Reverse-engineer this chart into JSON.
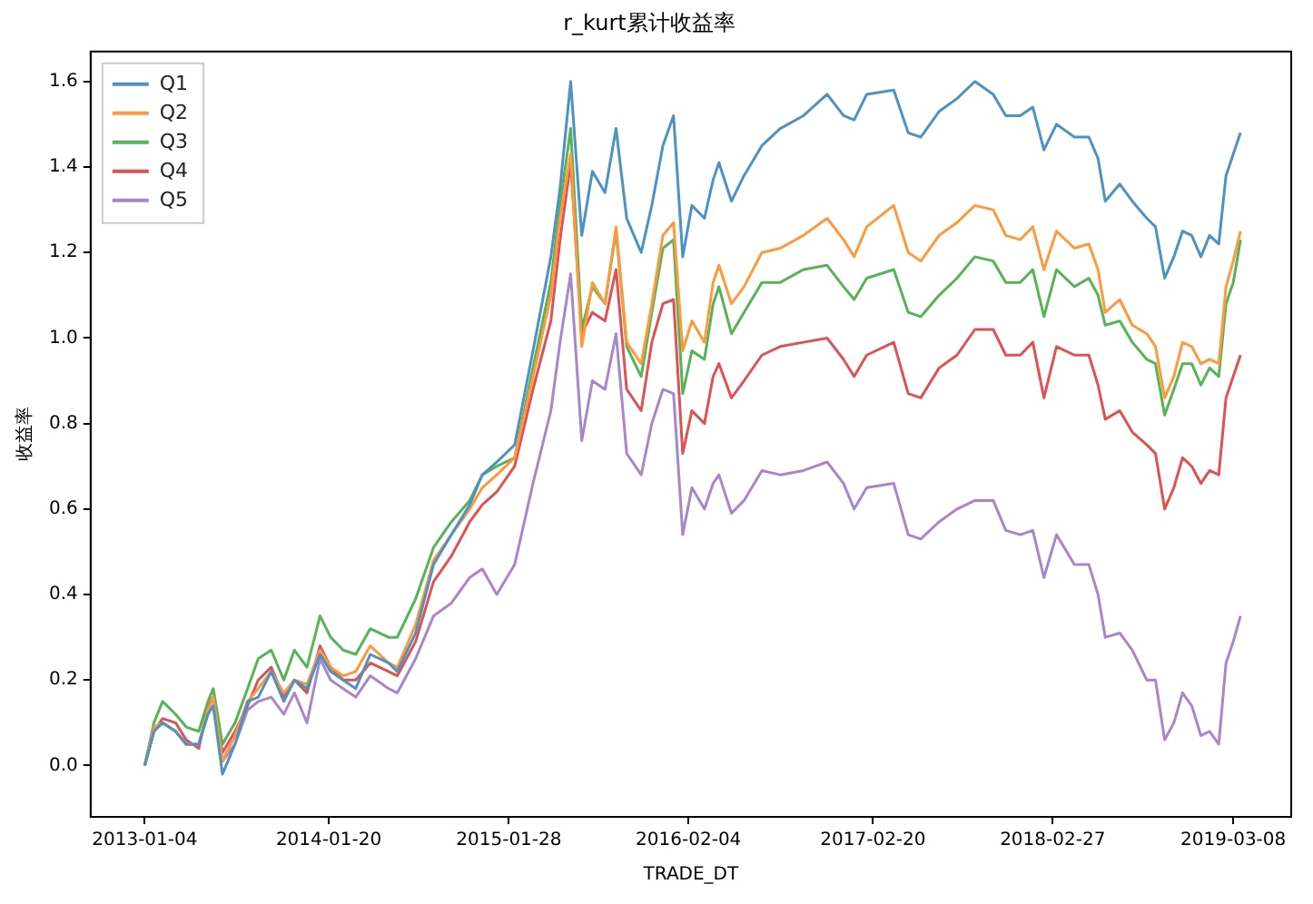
{
  "chart_data": {
    "type": "line",
    "title": "r_kurt累计收益率",
    "xlabel": "TRADE_DT",
    "ylabel": "收益率",
    "x": [
      "2013-01-04",
      "2013-01-23",
      "2013-02-10",
      "2013-03-09",
      "2013-03-31",
      "2013-04-26",
      "2013-05-15",
      "2013-05-26",
      "2013-06-14",
      "2013-07-10",
      "2013-08-05",
      "2013-08-27",
      "2013-09-23",
      "2013-10-19",
      "2013-11-10",
      "2013-12-06",
      "2014-01-02",
      "2014-01-24",
      "2014-02-19",
      "2014-03-17",
      "2014-04-16",
      "2014-05-24",
      "2014-06-11",
      "2014-07-19",
      "2014-08-25",
      "2014-10-01",
      "2014-11-08",
      "2014-12-04",
      "2015-01-03",
      "2015-02-09",
      "2015-03-19",
      "2015-04-25",
      "2015-05-14",
      "2015-06-05",
      "2015-06-28",
      "2015-07-20",
      "2015-08-15",
      "2015-09-07",
      "2015-09-29",
      "2015-10-29",
      "2015-11-20",
      "2015-12-13",
      "2016-01-04",
      "2016-01-23",
      "2016-02-11",
      "2016-03-08",
      "2016-03-26",
      "2016-04-07",
      "2016-05-03",
      "2016-05-29",
      "2016-07-05",
      "2016-08-12",
      "2016-09-29",
      "2016-11-17",
      "2016-12-21",
      "2017-01-12",
      "2017-02-07",
      "2017-04-04",
      "2017-05-04",
      "2017-05-30",
      "2017-07-07",
      "2017-08-13",
      "2017-09-19",
      "2017-10-27",
      "2017-11-22",
      "2017-12-22",
      "2018-01-17",
      "2018-02-09",
      "2018-03-07",
      "2018-04-13",
      "2018-05-13",
      "2018-06-01",
      "2018-06-16",
      "2018-07-16",
      "2018-08-11",
      "2018-09-10",
      "2018-09-28",
      "2018-10-17",
      "2018-11-05",
      "2018-11-23",
      "2018-12-12",
      "2018-12-31",
      "2019-01-18",
      "2019-02-06",
      "2019-02-21",
      "2019-03-08",
      "2019-03-23"
    ],
    "series": [
      {
        "name": "Q1",
        "color": "#4c92c3",
        "values": [
          0,
          0.08,
          0.1,
          0.08,
          0.05,
          0.05,
          0.12,
          0.14,
          -0.02,
          0.05,
          0.15,
          0.16,
          0.22,
          0.15,
          0.2,
          0.18,
          0.26,
          0.22,
          0.2,
          0.18,
          0.26,
          0.24,
          0.22,
          0.31,
          0.47,
          0.54,
          0.61,
          0.68,
          0.71,
          0.75,
          0.97,
          1.19,
          1.35,
          1.6,
          1.24,
          1.39,
          1.34,
          1.49,
          1.28,
          1.2,
          1.31,
          1.45,
          1.52,
          1.19,
          1.31,
          1.28,
          1.37,
          1.41,
          1.32,
          1.38,
          1.45,
          1.49,
          1.52,
          1.57,
          1.52,
          1.51,
          1.57,
          1.58,
          1.48,
          1.47,
          1.53,
          1.56,
          1.6,
          1.57,
          1.52,
          1.52,
          1.54,
          1.44,
          1.5,
          1.47,
          1.47,
          1.42,
          1.32,
          1.36,
          1.32,
          1.28,
          1.26,
          1.14,
          1.19,
          1.25,
          1.24,
          1.19,
          1.24,
          1.22,
          1.38,
          1.43,
          1.48
        ]
      },
      {
        "name": "Q2",
        "color": "#ff993e",
        "values": [
          0,
          0.09,
          0.1,
          0.08,
          0.05,
          0.05,
          0.13,
          0.16,
          0.01,
          0.07,
          0.15,
          0.18,
          0.22,
          0.17,
          0.2,
          0.19,
          0.27,
          0.23,
          0.21,
          0.22,
          0.28,
          0.24,
          0.23,
          0.33,
          0.48,
          0.54,
          0.6,
          0.65,
          0.68,
          0.72,
          0.91,
          1.1,
          1.28,
          1.43,
          0.98,
          1.13,
          1.08,
          1.26,
          0.99,
          0.94,
          1.08,
          1.24,
          1.27,
          0.97,
          1.04,
          0.99,
          1.13,
          1.17,
          1.08,
          1.12,
          1.2,
          1.21,
          1.24,
          1.28,
          1.23,
          1.19,
          1.26,
          1.31,
          1.2,
          1.18,
          1.24,
          1.27,
          1.31,
          1.3,
          1.24,
          1.23,
          1.26,
          1.16,
          1.25,
          1.21,
          1.22,
          1.16,
          1.06,
          1.09,
          1.03,
          1.01,
          0.98,
          0.86,
          0.91,
          0.99,
          0.98,
          0.94,
          0.95,
          0.94,
          1.12,
          1.18,
          1.25
        ]
      },
      {
        "name": "Q3",
        "color": "#56b356",
        "values": [
          0,
          0.1,
          0.15,
          0.12,
          0.09,
          0.08,
          0.15,
          0.18,
          0.05,
          0.1,
          0.18,
          0.25,
          0.27,
          0.2,
          0.27,
          0.23,
          0.35,
          0.3,
          0.27,
          0.26,
          0.32,
          0.3,
          0.3,
          0.39,
          0.51,
          0.57,
          0.62,
          0.68,
          0.7,
          0.72,
          0.93,
          1.13,
          1.31,
          1.49,
          1.02,
          1.12,
          1.08,
          1.25,
          0.98,
          0.91,
          1.06,
          1.21,
          1.23,
          0.87,
          0.97,
          0.95,
          1.08,
          1.12,
          1.01,
          1.06,
          1.13,
          1.13,
          1.16,
          1.17,
          1.12,
          1.09,
          1.14,
          1.16,
          1.06,
          1.05,
          1.1,
          1.14,
          1.19,
          1.18,
          1.13,
          1.13,
          1.16,
          1.05,
          1.16,
          1.12,
          1.14,
          1.1,
          1.03,
          1.04,
          0.99,
          0.95,
          0.94,
          0.82,
          0.88,
          0.94,
          0.94,
          0.89,
          0.93,
          0.91,
          1.08,
          1.13,
          1.23
        ]
      },
      {
        "name": "Q4",
        "color": "#de5253",
        "values": [
          0,
          0.08,
          0.11,
          0.1,
          0.06,
          0.04,
          0.14,
          0.16,
          0.03,
          0.08,
          0.14,
          0.2,
          0.23,
          0.16,
          0.2,
          0.17,
          0.28,
          0.23,
          0.2,
          0.2,
          0.24,
          0.22,
          0.21,
          0.29,
          0.43,
          0.49,
          0.57,
          0.61,
          0.64,
          0.7,
          0.88,
          1.04,
          1.23,
          1.41,
          1.01,
          1.06,
          1.04,
          1.16,
          0.88,
          0.83,
          0.99,
          1.08,
          1.09,
          0.73,
          0.83,
          0.8,
          0.91,
          0.94,
          0.86,
          0.9,
          0.96,
          0.98,
          0.99,
          1.0,
          0.95,
          0.91,
          0.96,
          0.99,
          0.87,
          0.86,
          0.93,
          0.96,
          1.02,
          1.02,
          0.96,
          0.96,
          0.99,
          0.86,
          0.98,
          0.96,
          0.96,
          0.89,
          0.81,
          0.83,
          0.78,
          0.75,
          0.73,
          0.6,
          0.65,
          0.72,
          0.7,
          0.66,
          0.69,
          0.68,
          0.86,
          0.91,
          0.96
        ]
      },
      {
        "name": "Q5",
        "color": "#a985ca",
        "values": [
          0,
          0.08,
          0.1,
          0.08,
          0.05,
          0.05,
          0.13,
          0.14,
          0.01,
          0.05,
          0.13,
          0.15,
          0.16,
          0.12,
          0.17,
          0.1,
          0.25,
          0.2,
          0.18,
          0.16,
          0.21,
          0.18,
          0.17,
          0.25,
          0.35,
          0.38,
          0.44,
          0.46,
          0.4,
          0.47,
          0.66,
          0.83,
          0.99,
          1.15,
          0.76,
          0.9,
          0.88,
          1.01,
          0.73,
          0.68,
          0.8,
          0.88,
          0.87,
          0.54,
          0.65,
          0.6,
          0.66,
          0.68,
          0.59,
          0.62,
          0.69,
          0.68,
          0.69,
          0.71,
          0.66,
          0.6,
          0.65,
          0.66,
          0.54,
          0.53,
          0.57,
          0.6,
          0.62,
          0.62,
          0.55,
          0.54,
          0.55,
          0.44,
          0.54,
          0.47,
          0.47,
          0.4,
          0.3,
          0.31,
          0.27,
          0.2,
          0.2,
          0.06,
          0.1,
          0.17,
          0.14,
          0.07,
          0.08,
          0.05,
          0.24,
          0.29,
          0.35
        ]
      }
    ],
    "xlim": [
      "2012-09-14",
      "2019-07-06"
    ],
    "xticks": [
      "2013-01-04",
      "2014-01-20",
      "2015-01-28",
      "2016-02-04",
      "2017-02-20",
      "2018-02-27",
      "2019-03-08"
    ],
    "ylim": [
      -0.12,
      1.67
    ],
    "yticks": [
      {
        "value": 0,
        "label": "0.0"
      },
      {
        "value": 0.2,
        "label": "0.2"
      },
      {
        "value": 0.4,
        "label": "0.4"
      },
      {
        "value": 0.6,
        "label": "0.6"
      },
      {
        "value": 0.8,
        "label": "0.8"
      },
      {
        "value": 1.0,
        "label": "1.0"
      },
      {
        "value": 1.2,
        "label": "1.2"
      },
      {
        "value": 1.4,
        "label": "1.4"
      },
      {
        "value": 1.6,
        "label": "1.6"
      }
    ],
    "legend": "top left",
    "grid": false,
    "marker": "none",
    "line_style": "solid"
  }
}
